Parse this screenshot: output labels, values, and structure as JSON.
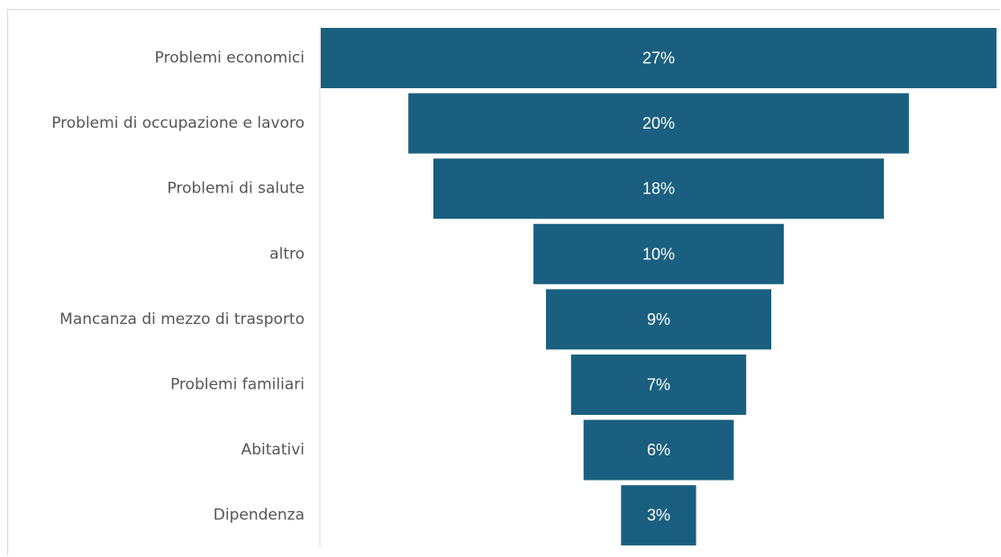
{
  "chart_data": {
    "type": "bar",
    "subtype": "funnel",
    "categories": [
      "Problemi economici",
      "Problemi di occupazione e lavoro",
      "Problemi di salute",
      "altro",
      "Mancanza di mezzo di trasporto",
      "Problemi familiari",
      "Abitativi",
      "Dipendenza"
    ],
    "values": [
      27,
      20,
      18,
      10,
      9,
      7,
      6,
      3
    ],
    "value_labels": [
      "27%",
      "20%",
      "18%",
      "10%",
      "9%",
      "7%",
      "6%",
      "3%"
    ],
    "unit": "%",
    "title": "",
    "xlabel": "",
    "ylabel": "",
    "bar_color": "#1a5f7f",
    "label_color": "#555555",
    "value_label_color": "#ffffff",
    "grid": false,
    "legend": "none"
  }
}
